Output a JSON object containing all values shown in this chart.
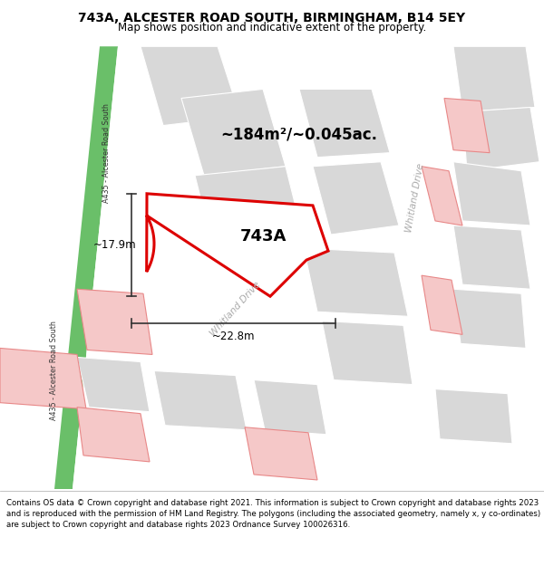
{
  "title_line1": "743A, ALCESTER ROAD SOUTH, BIRMINGHAM, B14 5EY",
  "title_line2": "Map shows position and indicative extent of the property.",
  "area_label": "~184m²/~0.045ac.",
  "property_label": "743A",
  "dim_width": "~22.8m",
  "dim_height": "~17.9m",
  "road_label_left_upper": "A435 - Alcester Road South",
  "road_label_left_lower": "A435 - Alcester Road South",
  "road_label_diag": "Whitland Drive",
  "road_label_right": "Whitland Drive",
  "footer": "Contains OS data © Crown copyright and database right 2021. This information is subject to Crown copyright and database rights 2023 and is reproduced with the permission of HM Land Registry. The polygons (including the associated geometry, namely x, y co-ordinates) are subject to Crown copyright and database rights 2023 Ordnance Survey 100026316.",
  "title1_fontsize": 10,
  "title2_fontsize": 8.5,
  "footer_fontsize": 6.2,
  "white": "#ffffff",
  "light_gray": "#ebebeb",
  "gray_block": "#d8d8d8",
  "pink_block": "#f5c8c8",
  "pink_edge": "#e88888",
  "green_road": "#6abf69",
  "highlight_red": "#dd0000",
  "text_dark": "#333333",
  "text_road": "#aaaaaa",
  "dim_color": "#333333"
}
